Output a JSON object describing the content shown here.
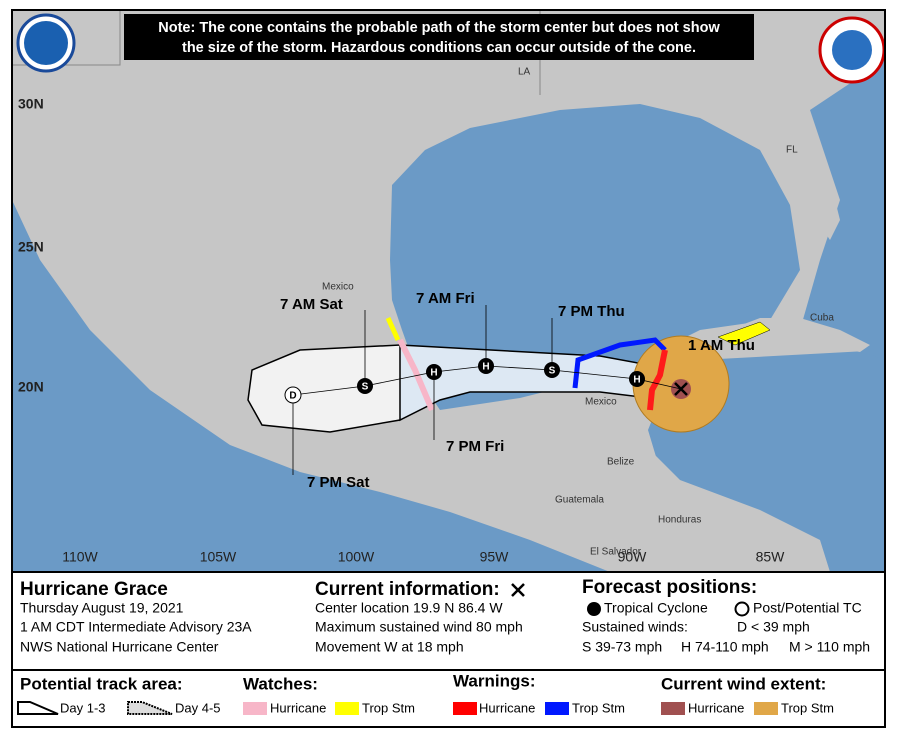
{
  "map": {
    "note": [
      "Note: The cone contains the probable path of the storm center but does not show",
      "the size of the storm. Hazardous conditions can occur outside of the cone."
    ],
    "lat_labels": [
      "30N",
      "25N",
      "20N"
    ],
    "lon_labels": [
      "110W",
      "105W",
      "100W",
      "95W",
      "90W",
      "85W"
    ],
    "places": [
      "LA",
      "FL",
      "Mexico",
      "Cuba",
      "Mexico",
      "Belize",
      "Guatemala",
      "Honduras",
      "El Salvador"
    ],
    "forecast_times": [
      "1 AM Thu",
      "7 PM Thu",
      "7 AM Fri",
      "7 PM Fri",
      "7 AM Sat",
      "7 PM Sat"
    ],
    "position_markers": [
      "H",
      "S",
      "H",
      "H",
      "S",
      "D"
    ]
  },
  "panel": {
    "storm_name": "Hurricane Grace",
    "info_lines": [
      "Thursday August 19, 2021",
      "1 AM CDT Intermediate Advisory 23A",
      "NWS National Hurricane Center"
    ],
    "current_title": "Current information:",
    "current_lines": [
      "Center location 19.9 N 86.4 W",
      "Maximum sustained wind 80 mph",
      "Movement W at 18 mph"
    ],
    "forecast_title": "Forecast positions:",
    "tropical_cyclone": "Tropical Cyclone",
    "post_tc": "Post/Potential TC",
    "sustained": "Sustained winds:",
    "d_range": "D < 39 mph",
    "s_range": "S 39-73 mph",
    "h_range": "H 74-110 mph",
    "m_range": "M > 110 mph"
  },
  "legend": {
    "track_title": "Potential track area:",
    "day13": "Day 1-3",
    "day45": "Day 4-5",
    "watches_title": "Watches:",
    "warnings_title": "Warnings:",
    "wind_title": "Current wind extent:",
    "items": [
      "Hurricane",
      "Trop Stm",
      "Hurricane",
      "Trop Stm",
      "Hurricane",
      "Trop Stm"
    ]
  }
}
